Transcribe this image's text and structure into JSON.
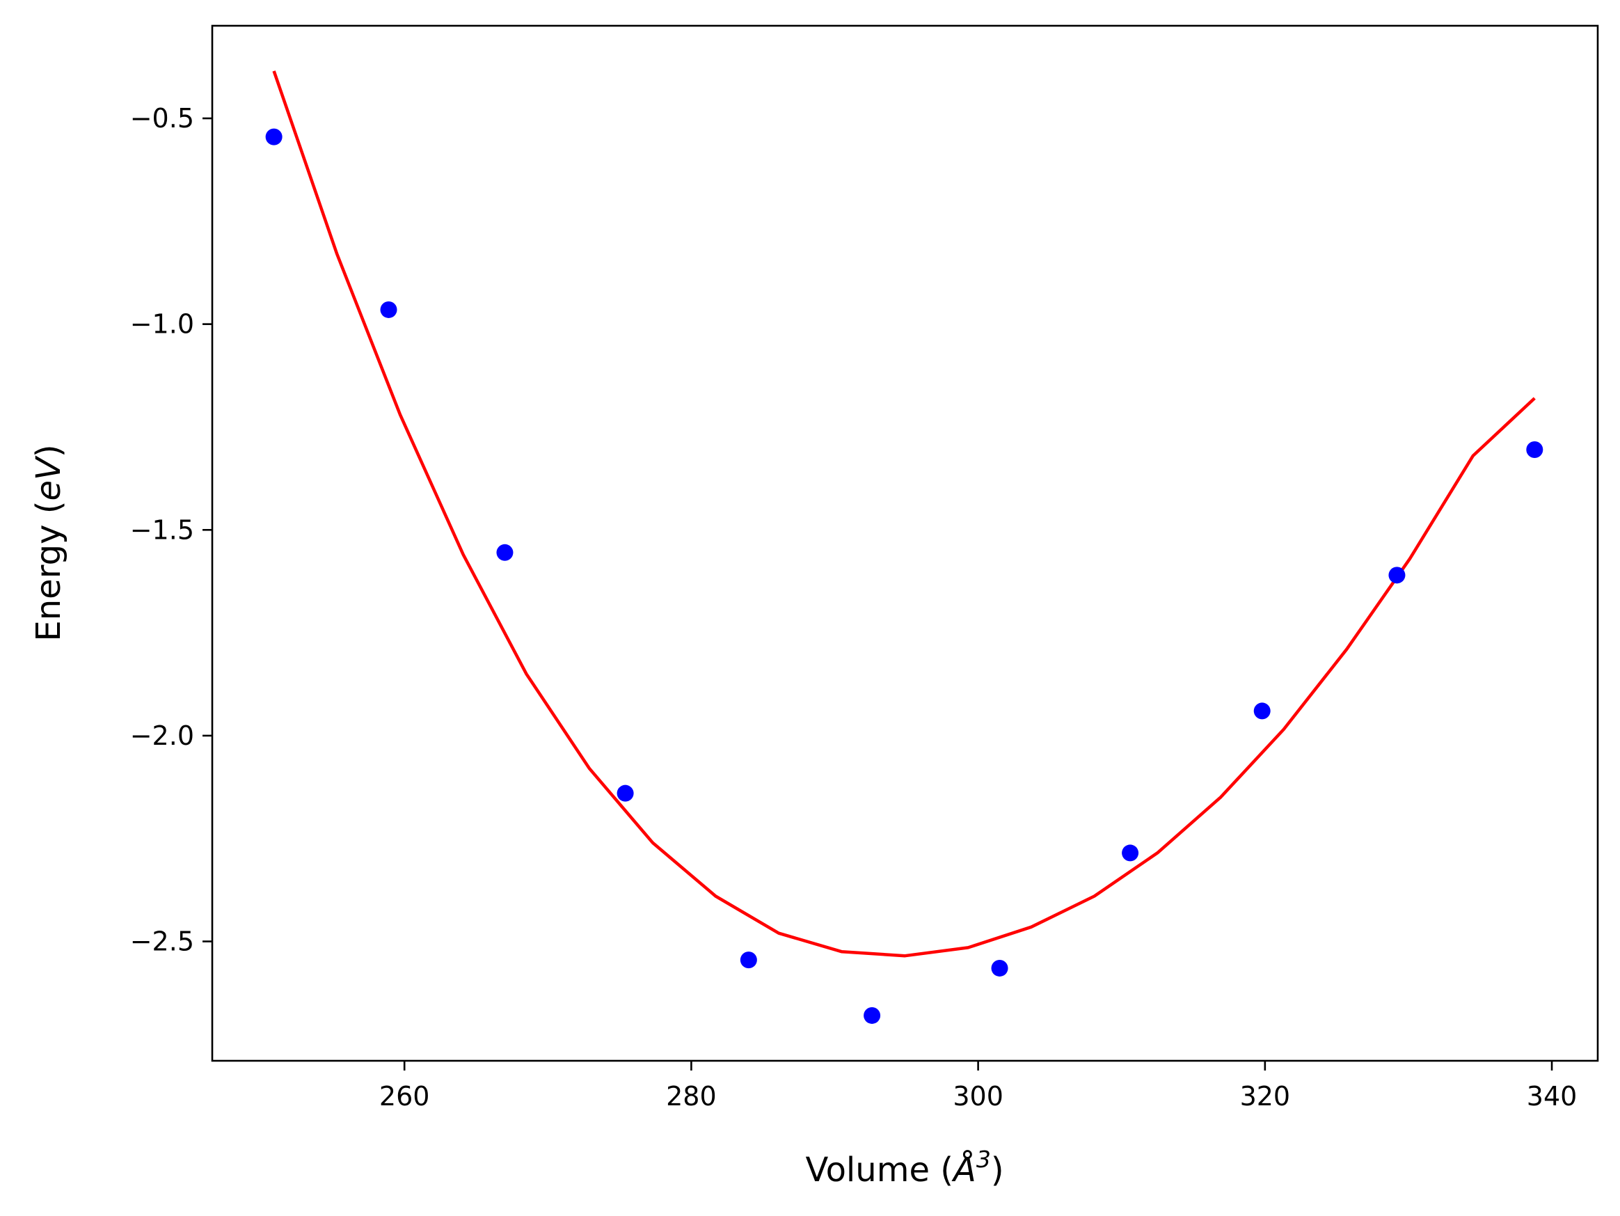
{
  "chart_data": {
    "type": "scatter",
    "title": "",
    "xlabel": {
      "prefix": "Volume (",
      "symbol": "Å",
      "sup": "3",
      "suffix": ")"
    },
    "ylabel": {
      "prefix": "Energy (",
      "unit": "eV",
      "suffix": ")"
    },
    "xlim": [
      246.6,
      343.2
    ],
    "ylim": [
      -2.79,
      -0.275
    ],
    "grid": false,
    "xticks": [
      260,
      280,
      300,
      320,
      340
    ],
    "xtick_labels": [
      "260",
      "280",
      "300",
      "320",
      "340"
    ],
    "yticks": [
      -0.5,
      -1.0,
      -1.5,
      -2.0,
      -2.5
    ],
    "ytick_labels": [
      "−0.5",
      "−1.0",
      "−1.5",
      "−2.0",
      "−2.5"
    ],
    "series": [
      {
        "kind": "scatter",
        "color": "#0000ff",
        "x": [
          250.9,
          258.9,
          267.0,
          275.4,
          284.0,
          292.6,
          301.5,
          310.6,
          319.8,
          329.2,
          338.8
        ],
        "y": [
          -0.545,
          -0.965,
          -1.555,
          -2.14,
          -2.545,
          -2.68,
          -2.565,
          -2.285,
          -1.94,
          -1.61,
          -1.305
        ]
      },
      {
        "kind": "line",
        "color": "#ff0000",
        "x": [
          250.9,
          255.3,
          259.7,
          264.1,
          268.5,
          272.9,
          277.3,
          281.7,
          286.1,
          290.5,
          294.9,
          299.3,
          303.7,
          308.1,
          312.5,
          316.9,
          321.3,
          325.7,
          330.1,
          334.5,
          338.8
        ],
        "y": [
          -0.385,
          -0.83,
          -1.22,
          -1.56,
          -1.85,
          -2.08,
          -2.26,
          -2.39,
          -2.48,
          -2.525,
          -2.535,
          -2.515,
          -2.465,
          -2.39,
          -2.285,
          -2.15,
          -1.985,
          -1.79,
          -1.57,
          -1.32,
          -1.18
        ]
      }
    ]
  }
}
